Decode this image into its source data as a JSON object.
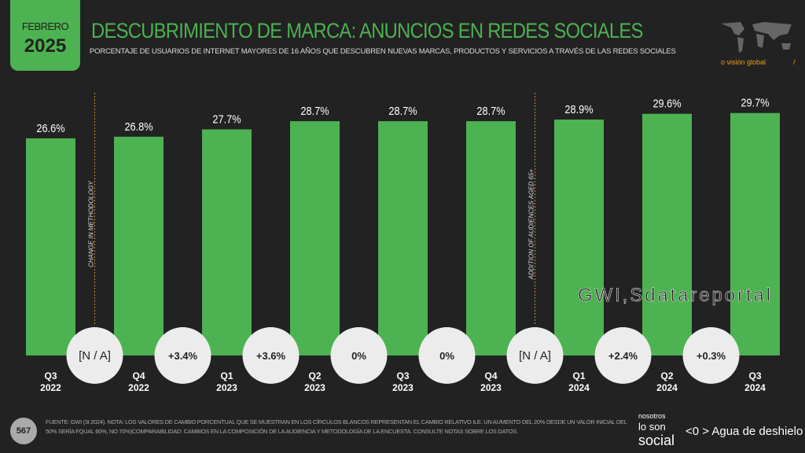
{
  "header": {
    "month": "FEBRERO",
    "year": "2025",
    "title": "DESCUBRIMIENTO DE MARCA: ANUNCIOS EN REDES SOCIALES",
    "subtitle": "PORCENTAJE DE USUARIOS DE INTERNET MAYORES DE 16 AÑOS QUE DESCUBREN NUEVAS MARCAS, PRODUCTOS Y SERVICIOS A TRAVÉS DE LAS REDES SOCIALES",
    "map_label": "o visión global",
    "map_slash": "/"
  },
  "chart_data": {
    "type": "bar",
    "categories": [
      [
        "Q3",
        "2022"
      ],
      [
        "Q4",
        "2022"
      ],
      [
        "Q1",
        "2023"
      ],
      [
        "Q2",
        "2023"
      ],
      [
        "Q3",
        "2023"
      ],
      [
        "Q4",
        "2023"
      ],
      [
        "Q1",
        "2024"
      ],
      [
        "Q2",
        "2024"
      ],
      [
        "Q3",
        "2024"
      ]
    ],
    "values": [
      26.6,
      26.8,
      27.7,
      28.7,
      28.7,
      28.7,
      28.9,
      29.6,
      29.7
    ],
    "data_labels": [
      "26.6%",
      "26.8%",
      "27.7%",
      "28.7%",
      "28.7%",
      "28.7%",
      "28.9%",
      "29.6%",
      "29.7%"
    ],
    "changes": [
      "[N / A]",
      "+3.4%",
      "+3.6%",
      "0%",
      "0%",
      "[N / A]",
      "+2.4%",
      "+0.3%"
    ],
    "annotations": [
      {
        "after_index": 0,
        "text": "CHANGE IN METHODOLOGY"
      },
      {
        "after_index": 5,
        "text": "ADDITION OF AUDIENCES AGED 65+"
      }
    ],
    "ylim": [
      0,
      30
    ],
    "color": "#4db251"
  },
  "watermark": "GWI,Sdatareportal",
  "footer": {
    "page": "567",
    "note": "FUENTE: GWI (3I 2024). NOTA: LOS VALORES DE CAMBIO PORCENTUAL QUE SE MUESTRAN EN LOS CÍRCULOS BLANCOS REPRESENTAN EL CAMBIO RELATIVO ILE. UN AUMENTO DEL 20% DESDE UN VALOR INICIAL DEL 50% SERÍA FQUAL 60%, NO 70%)COMPARABILIDAD: CAMBIOS EN LA COMPOSICIÓN DE LA AUDIENCIA Y METODOLOGÍA DE LA ENCUESTA. CONSULTE NOTAS SOBRE LOS DATOS.",
    "brand_small": "nosotros",
    "brand_mid": "lo son",
    "brand_big": "social",
    "brand2": "<0 > Agua de deshielo"
  }
}
